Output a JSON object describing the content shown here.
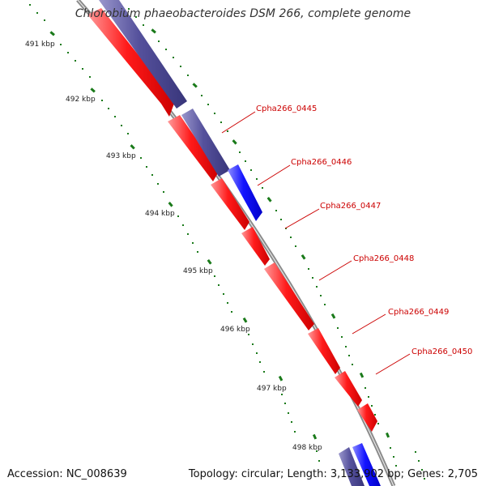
{
  "title": "Chlorobium phaeobacteroides DSM 266, complete genome",
  "footer": {
    "accession": "Accession: NC_008639",
    "summary": "Topology: circular; Length: 3,133,902 bp; Genes: 2,705"
  },
  "scale": {
    "unit": "kbp",
    "ticks": [
      "491 kbp",
      "492 kbp",
      "493 kbp",
      "494 kbp",
      "495 kbp",
      "496 kbp",
      "497 kbp",
      "498 kbp"
    ]
  },
  "genes": [
    "Cpha266_0445",
    "Cpha266_0446",
    "Cpha266_0447",
    "Cpha266_0448",
    "Cpha266_0449",
    "Cpha266_0450"
  ],
  "colors": {
    "backbone": "#8a8a8a",
    "cds_forward": "#ff0000",
    "feature_dark_blue": "#4b4794",
    "feature_blue": "#0000ff",
    "tick_green": "#1a7a1a",
    "label_red": "#cc0000"
  }
}
